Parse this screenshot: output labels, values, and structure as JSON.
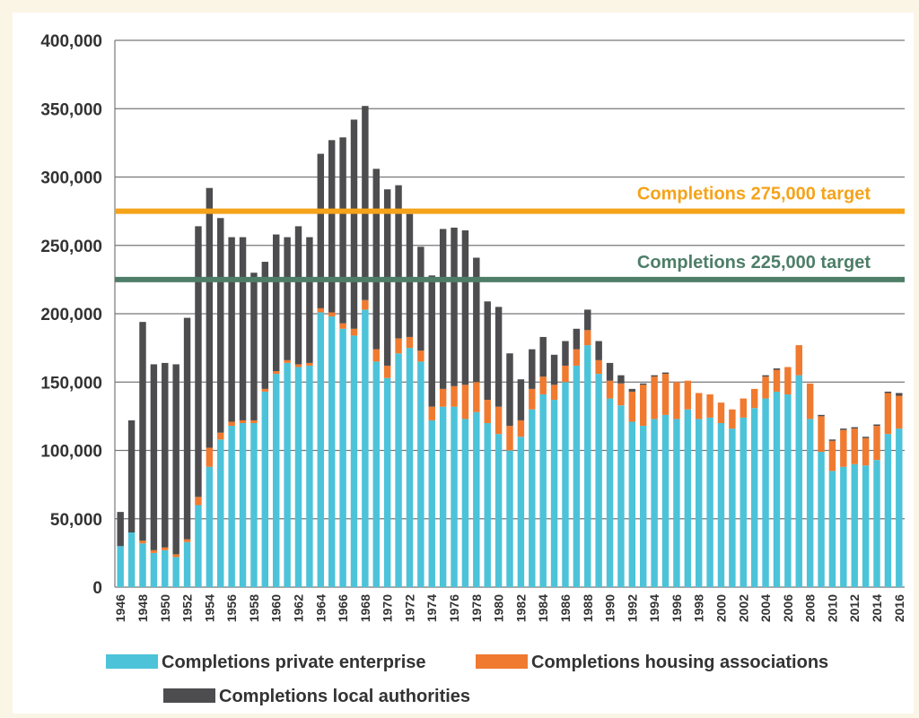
{
  "chart_data": {
    "type": "stacked-bar",
    "categories": [
      "1946",
      null,
      "1948",
      null,
      "1950",
      null,
      "1952",
      null,
      "1954",
      null,
      "1956",
      null,
      "1958",
      null,
      "1960",
      null,
      "1962",
      null,
      "1964",
      null,
      "1966",
      null,
      "1968",
      null,
      "1970",
      null,
      "1972",
      null,
      "1974",
      null,
      "1976",
      null,
      "1978",
      null,
      "1980",
      null,
      "1982",
      null,
      "1984",
      null,
      "1986",
      null,
      "1988",
      null,
      "1990",
      null,
      "1992",
      null,
      "1994",
      null,
      "1996",
      null,
      "1998",
      null,
      "2000",
      null,
      "2002",
      null,
      "2004",
      null,
      "2006",
      null,
      "2008",
      null,
      "2010",
      null,
      "2012",
      null,
      "2014",
      null,
      "2016"
    ],
    "series": [
      {
        "name": "Completions private enterprise",
        "color": "#4cc3d9",
        "values": [
          30000,
          40000,
          32000,
          25000,
          27000,
          22000,
          33000,
          60000,
          88000,
          108000,
          118000,
          120000,
          120000,
          143000,
          156000,
          164000,
          161000,
          162000,
          201000,
          198000,
          189000,
          184000,
          203000,
          165000,
          153000,
          171000,
          175000,
          165000,
          122000,
          132000,
          132000,
          123000,
          128000,
          120000,
          112000,
          100000,
          110000,
          130000,
          141000,
          137000,
          150000,
          162000,
          177000,
          156000,
          138000,
          133000,
          121000,
          118000,
          123000,
          126000,
          123000,
          130000,
          123000,
          124000,
          120000,
          116000,
          124000,
          131000,
          138000,
          143000,
          141000,
          155000,
          123000,
          99000,
          85000,
          88000,
          90000,
          89000,
          93000,
          112000,
          116000
        ]
      },
      {
        "name": "Completions housing associations",
        "color": "#f07a30",
        "values": [
          0,
          0,
          2000,
          2000,
          2000,
          2000,
          2000,
          6000,
          14000,
          5000,
          3000,
          2000,
          2000,
          2000,
          2000,
          2000,
          2000,
          2000,
          3000,
          3000,
          4000,
          5000,
          7000,
          9000,
          9000,
          11000,
          8000,
          8000,
          10000,
          13000,
          15000,
          25000,
          22000,
          17000,
          20000,
          18000,
          12000,
          15000,
          13000,
          11000,
          12000,
          12000,
          11000,
          10000,
          13000,
          16000,
          22000,
          30000,
          31000,
          30000,
          27000,
          21000,
          19000,
          17000,
          15000,
          14000,
          14000,
          14000,
          16000,
          16000,
          20000,
          22000,
          26000,
          26000,
          22000,
          27000,
          26000,
          20000,
          25000,
          30000,
          24000
        ]
      },
      {
        "name": "Completions local authorities",
        "color": "#4d4d4f",
        "values": [
          25000,
          82000,
          160000,
          136000,
          135000,
          139000,
          162000,
          198000,
          190000,
          157000,
          135000,
          134000,
          108000,
          93000,
          100000,
          90000,
          101000,
          92000,
          113000,
          126000,
          136000,
          153000,
          142000,
          132000,
          129000,
          112000,
          90000,
          76000,
          96000,
          117000,
          116000,
          113000,
          91000,
          72000,
          73000,
          53000,
          30000,
          29000,
          29000,
          22000,
          18000,
          15000,
          15000,
          14000,
          13000,
          6000,
          2000,
          1000,
          1000,
          1000,
          0,
          0,
          0,
          0,
          0,
          0,
          0,
          0,
          1000,
          1000,
          0,
          0,
          0,
          1000,
          1000,
          1000,
          1000,
          1000,
          1000,
          1000,
          2000
        ]
      }
    ],
    "targets": [
      {
        "value": 275000,
        "label": "Completions 275,000 target",
        "color": "#f5a31a"
      },
      {
        "value": 225000,
        "label": "Completions 225,000 target",
        "color": "#4e7e68"
      }
    ],
    "ylim": [
      0,
      400000
    ],
    "yticks": [
      0,
      {
        "value": 50000,
        "label": "50,000"
      },
      {
        "value": 100000,
        "label": "100,000"
      },
      {
        "value": 150000,
        "label": "150,000"
      },
      {
        "value": 200000,
        "label": "200,000"
      },
      {
        "value": 250000,
        "label": "250,000"
      },
      {
        "value": 300000,
        "label": "300,000"
      },
      {
        "value": 350000,
        "label": "350,000"
      },
      {
        "value": 400000,
        "label": "400,000"
      }
    ],
    "grid": true
  }
}
